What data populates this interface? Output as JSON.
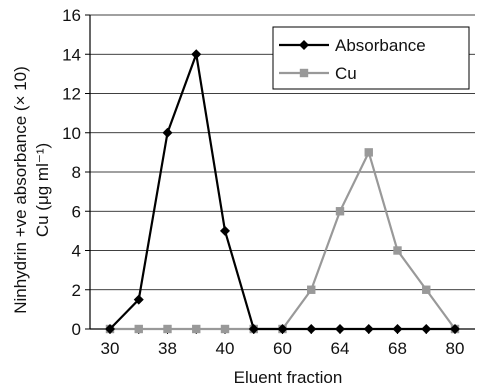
{
  "chart_data": {
    "type": "line",
    "xlabel": "Eluent fraction",
    "ylabel_lines": [
      "Ninhydrin +ve absorbance (× 10)",
      "Cu (μg ml⁻¹)"
    ],
    "categories": [
      "30",
      "",
      "38",
      "",
      "40",
      "",
      "60",
      "",
      "64",
      "",
      "68",
      "",
      "80"
    ],
    "ylim": [
      0,
      16
    ],
    "yticks": [
      0,
      2,
      4,
      6,
      8,
      10,
      12,
      14,
      16
    ],
    "grid": "horizontal",
    "legend_position": "top-right",
    "series": [
      {
        "name": "Absorbance",
        "color": "#000000",
        "marker": "diamond",
        "values": [
          0,
          1.5,
          10,
          14,
          5,
          0,
          0,
          0,
          0,
          0,
          0,
          0,
          0
        ]
      },
      {
        "name": "Cu",
        "color": "#999999",
        "marker": "square",
        "values": [
          0,
          0,
          0,
          0,
          0,
          0,
          0,
          2,
          6,
          9,
          4,
          2,
          0
        ]
      }
    ]
  }
}
